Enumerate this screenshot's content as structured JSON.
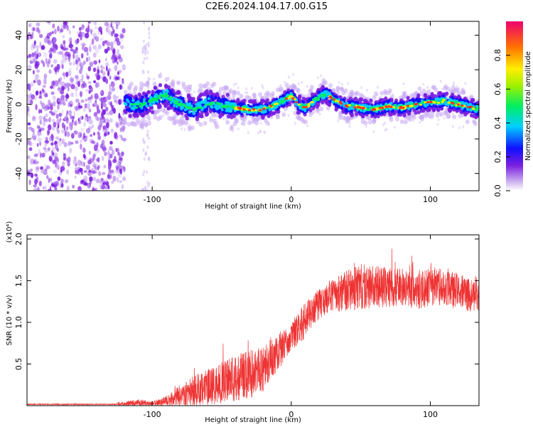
{
  "title": "C2E6.2024.104.17.00.G15",
  "chart_data": [
    {
      "type": "heatmap",
      "xlabel": "Height of straight line (km)",
      "ylabel": "Frequency (Hz)",
      "xlim": [
        -190,
        135
      ],
      "ylim": [
        -50,
        48
      ],
      "xticks": [
        -100,
        0,
        100
      ],
      "yticks": [
        -40,
        -20,
        0,
        20,
        40
      ],
      "colorbar": {
        "label": "Normalized spectral amplitude",
        "range": [
          0,
          1
        ],
        "ticks": [
          "0.0",
          "0.2",
          "0.4",
          "0.6",
          "0.8"
        ],
        "tick_values": [
          0.0,
          0.2,
          0.4,
          0.6,
          0.8
        ]
      },
      "ridge": {
        "x": [
          -120,
          -110,
          -100,
          -95,
          -90,
          -85,
          -80,
          -70,
          -60,
          -50,
          -40,
          -30,
          -20,
          -10,
          0,
          5,
          10,
          20,
          25,
          30,
          40,
          50,
          60,
          70,
          80,
          90,
          100,
          110,
          120,
          135
        ],
        "y": [
          1,
          -1,
          2,
          4,
          6,
          2,
          0,
          -3,
          1,
          -1,
          -2,
          -3,
          -3,
          0,
          5,
          0,
          -2,
          4,
          6,
          3,
          -1,
          -2,
          -3,
          -1,
          -2,
          0,
          1,
          2,
          0,
          -3
        ]
      },
      "noise_region_end_x": -120
    },
    {
      "type": "line",
      "xlabel": "Height of straight line (km)",
      "ylabel": "SNR (10 * v/v)",
      "y_multiplier": "(x10⁴)",
      "xlim": [
        -190,
        135
      ],
      "ylim": [
        0,
        2.05
      ],
      "xticks": [
        -100,
        0,
        100
      ],
      "yticks": [
        0.5,
        1.0,
        1.5,
        2.0
      ],
      "ytick_labels": [
        "0.5",
        "1.0",
        "1.5",
        "2.0"
      ],
      "color": "#ee3333",
      "envelope": {
        "x": [
          -190,
          -130,
          -120,
          -110,
          -100,
          -90,
          -80,
          -70,
          -60,
          -50,
          -40,
          -30,
          -20,
          -15,
          -10,
          -5,
          0,
          5,
          10,
          15,
          20,
          30,
          40,
          50,
          60,
          70,
          80,
          90,
          100,
          110,
          120,
          130,
          135
        ],
        "base": [
          0.01,
          0.01,
          0.02,
          0.03,
          0.02,
          0.05,
          0.1,
          0.15,
          0.2,
          0.25,
          0.3,
          0.35,
          0.4,
          0.55,
          0.6,
          0.7,
          0.8,
          0.9,
          1.0,
          1.1,
          1.2,
          1.3,
          1.35,
          1.4,
          1.4,
          1.4,
          1.4,
          1.35,
          1.4,
          1.4,
          1.35,
          1.3,
          1.3
        ],
        "spread": [
          0.01,
          0.01,
          0.05,
          0.08,
          0.06,
          0.1,
          0.25,
          0.35,
          0.4,
          0.45,
          0.5,
          0.55,
          0.5,
          0.45,
          0.4,
          0.35,
          0.3,
          0.35,
          0.4,
          0.35,
          0.35,
          0.35,
          0.45,
          0.5,
          0.45,
          0.45,
          0.4,
          0.4,
          0.45,
          0.4,
          0.4,
          0.35,
          0.35
        ]
      }
    }
  ]
}
